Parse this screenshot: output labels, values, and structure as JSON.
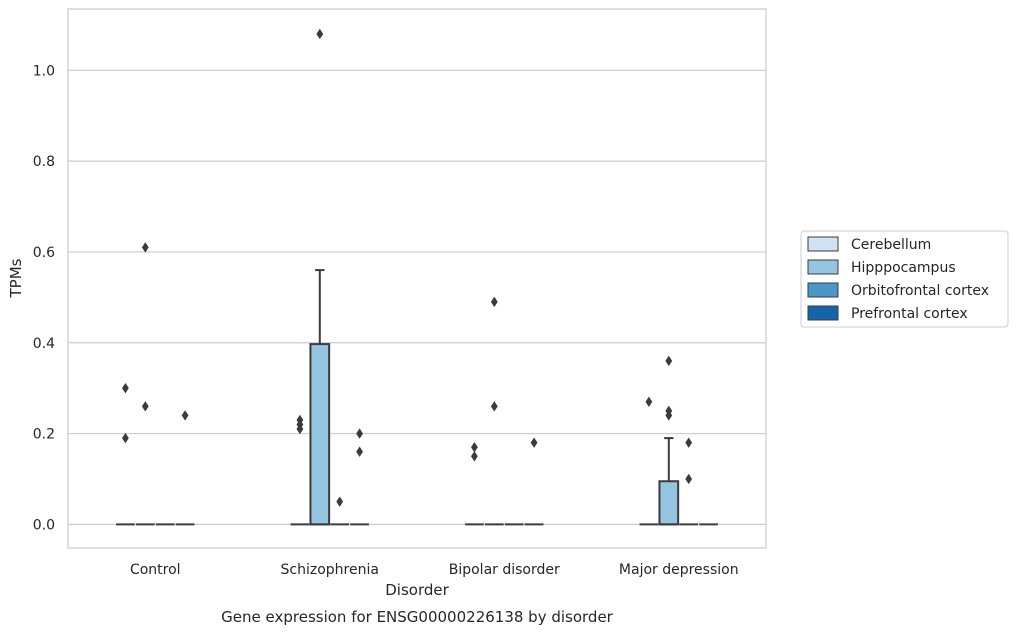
{
  "chart_data": {
    "type": "box",
    "title": "",
    "caption": "Gene expression for ENSG00000226138 by disorder",
    "xlabel": "Disorder",
    "ylabel": "TPMs",
    "ylim": [
      -0.052,
      1.135
    ],
    "yticks": [
      "0.0",
      "0.2",
      "0.4",
      "0.6",
      "0.8",
      "1.0"
    ],
    "categories": [
      "Control",
      "Schizophrenia",
      "Bipolar disorder",
      "Major depression"
    ],
    "grid": "horizontal",
    "legend_position": "right",
    "series": [
      {
        "name": "Cerebellum",
        "color": "#d0e1f2"
      },
      {
        "name": "Hipppocampus",
        "color": "#94c4df"
      },
      {
        "name": "Orbitofrontal cortex",
        "color": "#4a98c9"
      },
      {
        "name": "Prefrontal cortex",
        "color": "#1764ab"
      }
    ],
    "boxes": [
      {
        "category": 0,
        "series": 0,
        "q1": 0,
        "median": 0,
        "q3": 0,
        "whisker_low": 0,
        "whisker_high": 0,
        "outliers": [
          0.3,
          0.19
        ]
      },
      {
        "category": 0,
        "series": 1,
        "q1": 0,
        "median": 0,
        "q3": 0,
        "whisker_low": 0,
        "whisker_high": 0,
        "outliers": [
          0.61,
          0.26
        ]
      },
      {
        "category": 0,
        "series": 2,
        "q1": 0,
        "median": 0,
        "q3": 0,
        "whisker_low": 0,
        "whisker_high": 0,
        "outliers": []
      },
      {
        "category": 0,
        "series": 3,
        "q1": 0,
        "median": 0,
        "q3": 0,
        "whisker_low": 0,
        "whisker_high": 0,
        "outliers": [
          0.24
        ]
      },
      {
        "category": 1,
        "series": 0,
        "q1": 0,
        "median": 0,
        "q3": 0,
        "whisker_low": 0,
        "whisker_high": 0,
        "outliers": [
          0.23,
          0.22,
          0.21
        ]
      },
      {
        "category": 1,
        "series": 1,
        "q1": 0,
        "median": 0,
        "q3": 0.397,
        "whisker_low": 0,
        "whisker_high": 0.56,
        "outliers": [
          1.08
        ]
      },
      {
        "category": 1,
        "series": 2,
        "q1": 0,
        "median": 0,
        "q3": 0,
        "whisker_low": 0,
        "whisker_high": 0,
        "outliers": [
          0.05
        ]
      },
      {
        "category": 1,
        "series": 3,
        "q1": 0,
        "median": 0,
        "q3": 0,
        "whisker_low": 0,
        "whisker_high": 0,
        "outliers": [
          0.2,
          0.16
        ]
      },
      {
        "category": 2,
        "series": 0,
        "q1": 0,
        "median": 0,
        "q3": 0,
        "whisker_low": 0,
        "whisker_high": 0,
        "outliers": [
          0.17,
          0.15
        ]
      },
      {
        "category": 2,
        "series": 1,
        "q1": 0,
        "median": 0,
        "q3": 0,
        "whisker_low": 0,
        "whisker_high": 0,
        "outliers": [
          0.49,
          0.26
        ]
      },
      {
        "category": 2,
        "series": 2,
        "q1": 0,
        "median": 0,
        "q3": 0,
        "whisker_low": 0,
        "whisker_high": 0,
        "outliers": []
      },
      {
        "category": 2,
        "series": 3,
        "q1": 0,
        "median": 0,
        "q3": 0,
        "whisker_low": 0,
        "whisker_high": 0,
        "outliers": [
          0.18
        ]
      },
      {
        "category": 3,
        "series": 0,
        "q1": 0,
        "median": 0,
        "q3": 0,
        "whisker_low": 0,
        "whisker_high": 0,
        "outliers": [
          0.27
        ]
      },
      {
        "category": 3,
        "series": 1,
        "q1": 0,
        "median": 0,
        "q3": 0.095,
        "whisker_low": 0,
        "whisker_high": 0.19,
        "outliers": [
          0.36,
          0.25,
          0.24
        ]
      },
      {
        "category": 3,
        "series": 2,
        "q1": 0,
        "median": 0,
        "q3": 0,
        "whisker_low": 0,
        "whisker_high": 0,
        "outliers": [
          0.18,
          0.1
        ]
      },
      {
        "category": 3,
        "series": 3,
        "q1": 0,
        "median": 0,
        "q3": 0,
        "whisker_low": 0,
        "whisker_high": 0,
        "outliers": []
      }
    ]
  }
}
